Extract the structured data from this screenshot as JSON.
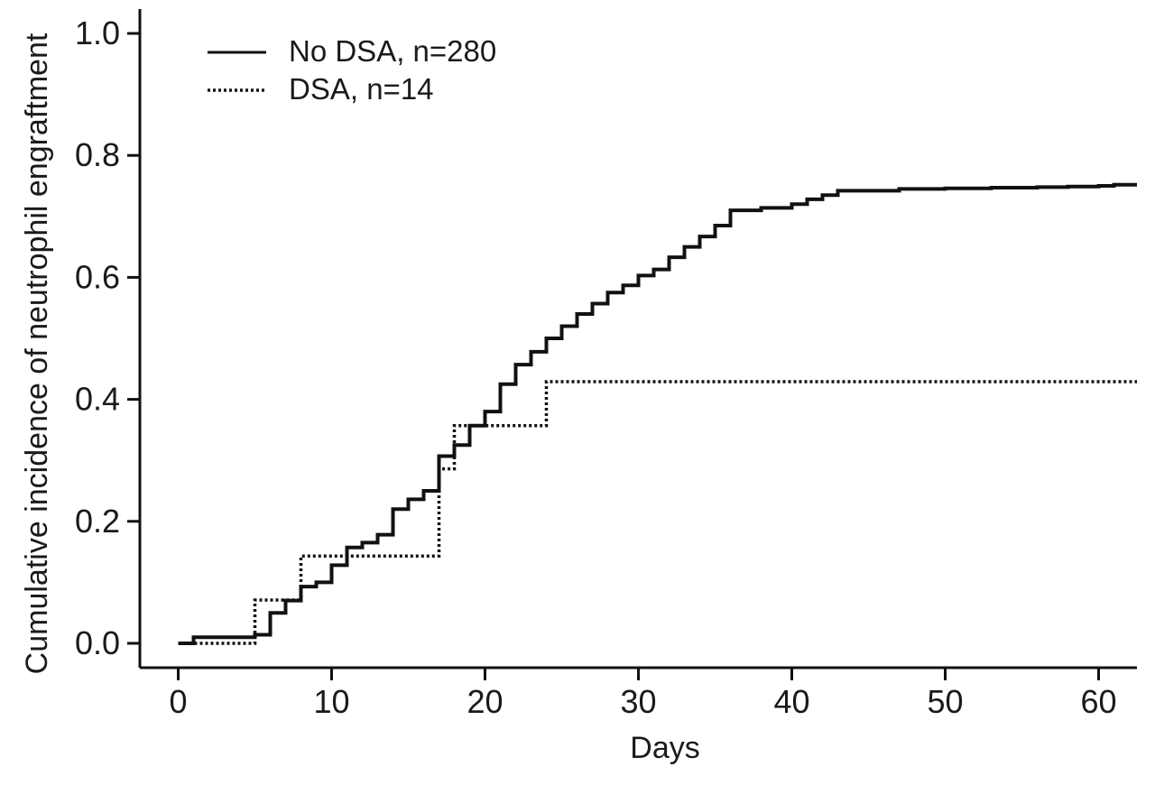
{
  "chart_data": {
    "type": "line",
    "step": true,
    "title": "",
    "xlabel": "Days",
    "ylabel": "Cumulative incidence of neutrophil engraftment",
    "xlim": [
      -2.5,
      62.5
    ],
    "ylim": [
      -0.04,
      1.04
    ],
    "xticks": [
      0,
      10,
      20,
      30,
      40,
      50,
      60
    ],
    "xtick_labels": [
      "0",
      "10",
      "20",
      "30",
      "40",
      "50",
      "60"
    ],
    "yticks": [
      0.0,
      0.2,
      0.4,
      0.6,
      0.8,
      1.0
    ],
    "ytick_labels": [
      "0.0",
      "0.2",
      "0.4",
      "0.6",
      "0.8",
      "1.0"
    ],
    "grid": false,
    "legend_position": "top-left",
    "series": [
      {
        "name": "No DSA, n=280",
        "style": "solid",
        "color": "#111111",
        "x": [
          0,
          1,
          5,
          6,
          7,
          8,
          9,
          10,
          11,
          12,
          13,
          14,
          15,
          16,
          17,
          18,
          19,
          20,
          21,
          22,
          23,
          24,
          25,
          26,
          27,
          28,
          29,
          30,
          31,
          32,
          33,
          34,
          35,
          36,
          38,
          40,
          41,
          42,
          43,
          47,
          50,
          53,
          56,
          58,
          60,
          61,
          62.5
        ],
        "y": [
          0.0,
          0.01,
          0.014,
          0.05,
          0.07,
          0.093,
          0.1,
          0.128,
          0.157,
          0.165,
          0.178,
          0.22,
          0.236,
          0.25,
          0.307,
          0.325,
          0.357,
          0.38,
          0.425,
          0.457,
          0.478,
          0.5,
          0.52,
          0.54,
          0.557,
          0.575,
          0.587,
          0.603,
          0.613,
          0.633,
          0.65,
          0.667,
          0.685,
          0.71,
          0.714,
          0.72,
          0.728,
          0.735,
          0.742,
          0.745,
          0.746,
          0.747,
          0.748,
          0.749,
          0.75,
          0.752,
          0.752
        ]
      },
      {
        "name": "DSA, n=14",
        "style": "dotted",
        "color": "#111111",
        "x": [
          0,
          5,
          6,
          8,
          11,
          17,
          18,
          24,
          62.5
        ],
        "y": [
          0.0,
          0.071,
          0.071,
          0.143,
          0.143,
          0.286,
          0.357,
          0.429,
          0.429
        ]
      }
    ]
  }
}
